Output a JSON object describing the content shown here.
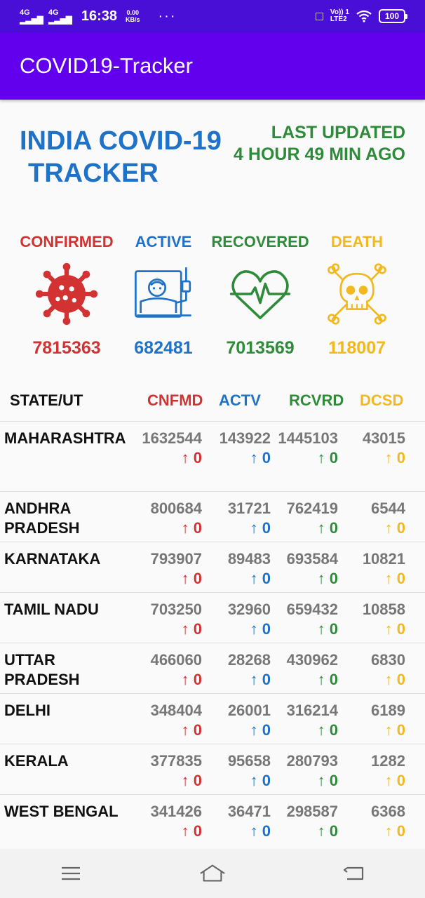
{
  "status_bar": {
    "net1": "4G",
    "net2": "4G",
    "time": "16:38",
    "speed_value": "0.00",
    "speed_unit": "KB/s",
    "more": "···",
    "lte_top": "Vo)) 1",
    "lte_bottom": "LTE2",
    "battery": "100"
  },
  "app": {
    "title": "COVID19-Tracker"
  },
  "hero": {
    "title_line1": "INDIA COVID-19",
    "title_line2": "TRACKER",
    "updated_line1": "LAST UPDATED",
    "updated_line2": "4 HOUR 49 MIN AGO"
  },
  "colors": {
    "confirmed": "#d33232",
    "active": "#1e72c8",
    "recovered": "#2e8b3a",
    "death": "#f2b81f",
    "appbar": "#6200ee",
    "statusbar": "#4a0fd6"
  },
  "summary": {
    "confirmed": {
      "label": "CONFIRMED",
      "value": "7815363",
      "icon": "virus-icon"
    },
    "active": {
      "label": "ACTIVE",
      "value": "682481",
      "icon": "hospital-bed-icon"
    },
    "recovered": {
      "label": "RECOVERED",
      "value": "7013569",
      "icon": "heartbeat-icon"
    },
    "death": {
      "label": "DEATH",
      "value": "118007",
      "icon": "skull-crossbones-icon"
    }
  },
  "table": {
    "headers": {
      "state": "STATE/UT",
      "confirmed": "CNFMD",
      "active": "ACTV",
      "recovered": "RCVRD",
      "deceased": "DCSD"
    },
    "rows": [
      {
        "state": "MAHARASHTRA",
        "confirmed": "1632544",
        "confirmed_delta": "↑ 0",
        "active": "143922",
        "active_delta": "↑ 0",
        "recovered": "1445103",
        "recovered_delta": "↑ 0",
        "deceased": "43015",
        "deceased_delta": "↑ 0"
      },
      {
        "state": "ANDHRA PRADESH",
        "confirmed": "800684",
        "confirmed_delta": "↑ 0",
        "active": "31721",
        "active_delta": "↑ 0",
        "recovered": "762419",
        "recovered_delta": "↑ 0",
        "deceased": "6544",
        "deceased_delta": "↑ 0"
      },
      {
        "state": "KARNATAKA",
        "confirmed": "793907",
        "confirmed_delta": "↑ 0",
        "active": "89483",
        "active_delta": "↑ 0",
        "recovered": "693584",
        "recovered_delta": "↑ 0",
        "deceased": "10821",
        "deceased_delta": "↑ 0"
      },
      {
        "state": "TAMIL NADU",
        "confirmed": "703250",
        "confirmed_delta": "↑ 0",
        "active": "32960",
        "active_delta": "↑ 0",
        "recovered": "659432",
        "recovered_delta": "↑ 0",
        "deceased": "10858",
        "deceased_delta": "↑ 0"
      },
      {
        "state": "UTTAR PRADESH",
        "confirmed": "466060",
        "confirmed_delta": "↑ 0",
        "active": "28268",
        "active_delta": "↑ 0",
        "recovered": "430962",
        "recovered_delta": "↑ 0",
        "deceased": "6830",
        "deceased_delta": "↑ 0"
      },
      {
        "state": "DELHI",
        "confirmed": "348404",
        "confirmed_delta": "↑ 0",
        "active": "26001",
        "active_delta": "↑ 0",
        "recovered": "316214",
        "recovered_delta": "↑ 0",
        "deceased": "6189",
        "deceased_delta": "↑ 0"
      },
      {
        "state": "KERALA",
        "confirmed": "377835",
        "confirmed_delta": "↑ 0",
        "active": "95658",
        "active_delta": "↑ 0",
        "recovered": "280793",
        "recovered_delta": "↑ 0",
        "deceased": "1282",
        "deceased_delta": "↑ 0"
      },
      {
        "state": "WEST BENGAL",
        "confirmed": "341426",
        "confirmed_delta": "↑ 0",
        "active": "36471",
        "active_delta": "↑ 0",
        "recovered": "298587",
        "recovered_delta": "↑ 0",
        "deceased": "6368",
        "deceased_delta": "↑ 0"
      }
    ]
  },
  "nav": {
    "menu_icon": "menu-icon",
    "home_icon": "home-icon",
    "back_icon": "back-icon"
  }
}
